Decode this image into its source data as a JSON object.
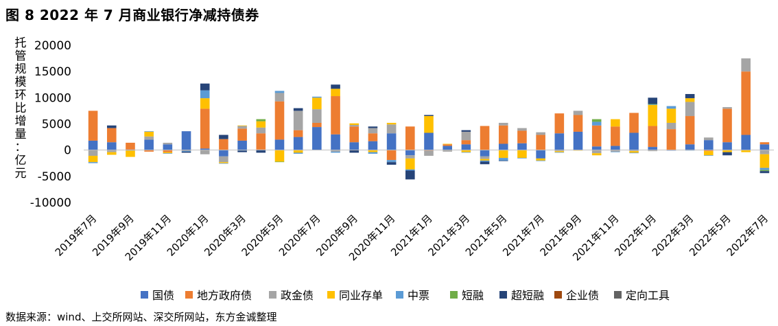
{
  "title": "图 8  2022 年 7 月商业银行净减持债券",
  "source": "数据来源：wind、上交所网站、深交所网站，东方金诚整理",
  "chart_data": {
    "type": "bar",
    "stacked": true,
    "title": "图 8  2022 年 7 月商业银行净减持债券",
    "ylabel": "托管规模环比增量：亿元",
    "ylim": [
      -10000,
      20000
    ],
    "yticks": [
      20000,
      15000,
      10000,
      5000,
      0,
      -5000,
      -10000
    ],
    "ytick_labels": [
      "20000",
      "15000",
      "10000",
      "5000",
      "0",
      "-5000",
      "-10000"
    ],
    "grid": false,
    "legend_position": "bottom",
    "categories": [
      "2019年7月",
      "2019年8月",
      "2019年9月",
      "2019年10月",
      "2019年11月",
      "2019年12月",
      "2020年1月",
      "2020年2月",
      "2020年3月",
      "2020年4月",
      "2020年5月",
      "2020年6月",
      "2020年7月",
      "2020年8月",
      "2020年9月",
      "2020年10月",
      "2020年11月",
      "2020年12月",
      "2021年1月",
      "2021年2月",
      "2021年3月",
      "2021年4月",
      "2021年5月",
      "2021年6月",
      "2021年7月",
      "2021年8月",
      "2021年9月",
      "2021年10月",
      "2021年11月",
      "2021年12月",
      "2022年1月",
      "2022年2月",
      "2022年3月",
      "2022年4月",
      "2022年5月",
      "2022年6月",
      "2022年7月"
    ],
    "xtick_labels": [
      "2019年7月",
      "2019年9月",
      "2019年11月",
      "2020年1月",
      "2020年3月",
      "2020年5月",
      "2020年7月",
      "2020年9月",
      "2020年11月",
      "2021年1月",
      "2021年3月",
      "2021年5月",
      "2021年7月",
      "2021年9月",
      "2021年11月",
      "2022年1月",
      "2022年3月",
      "2022年5月",
      "2022年7月"
    ],
    "series": [
      {
        "name": "国债",
        "color": "#4472C4",
        "values": [
          1800,
          1500,
          100,
          2000,
          1100,
          3600,
          300,
          -1200,
          1800,
          100,
          2000,
          2500,
          4400,
          3000,
          1500,
          1700,
          3200,
          -1000,
          3300,
          800,
          1100,
          -1200,
          1200,
          1300,
          -1600,
          3200,
          3500,
          700,
          800,
          3300,
          600,
          -100,
          1100,
          1900,
          1500,
          2900,
          1100
        ]
      },
      {
        "name": "地方政府债",
        "color": "#ED7D31",
        "values": [
          5700,
          2700,
          1300,
          -300,
          -400,
          -100,
          7600,
          2100,
          2300,
          3100,
          7300,
          1300,
          800,
          7300,
          3000,
          1500,
          -1900,
          4500,
          -100,
          300,
          800,
          4600,
          3500,
          2400,
          2900,
          3800,
          3200,
          4000,
          3700,
          3800,
          4000,
          4000,
          5400,
          -200,
          6400,
          12100,
          400
        ]
      },
      {
        "name": "政金债",
        "color": "#A5A5A5",
        "values": [
          -1100,
          -400,
          -100,
          600,
          300,
          0,
          -800,
          -1100,
          500,
          1100,
          1600,
          3700,
          2600,
          -300,
          300,
          1000,
          1700,
          -600,
          -1000,
          -300,
          1600,
          -500,
          500,
          500,
          500,
          -200,
          800,
          -600,
          -300,
          -200,
          -200,
          1200,
          2700,
          500,
          300,
          2500,
          -800
        ]
      },
      {
        "name": "同业存单",
        "color": "#FFC000",
        "values": [
          -1200,
          -500,
          -1200,
          900,
          -200,
          0,
          2000,
          -200,
          100,
          1200,
          -2200,
          -500,
          2200,
          1400,
          300,
          -400,
          300,
          -2100,
          3200,
          100,
          -400,
          -300,
          -1500,
          -1500,
          -400,
          -200,
          -100,
          -400,
          1400,
          -300,
          4000,
          2700,
          700,
          -800,
          -400,
          -400,
          -2600
        ]
      },
      {
        "name": "中票",
        "color": "#5B9BD5",
        "values": [
          -200,
          0,
          0,
          100,
          -100,
          -200,
          1500,
          -100,
          -100,
          0,
          400,
          -200,
          200,
          -200,
          0,
          -300,
          -400,
          -200,
          0,
          0,
          -100,
          -200,
          -500,
          -100,
          -100,
          -100,
          0,
          700,
          -100,
          -100,
          100,
          500,
          -100,
          -100,
          0,
          0,
          -400
        ]
      },
      {
        "name": "短融",
        "color": "#70AD47",
        "values": [
          0,
          0,
          0,
          0,
          0,
          0,
          0,
          0,
          0,
          400,
          -100,
          0,
          0,
          0,
          0,
          0,
          0,
          0,
          0,
          0,
          0,
          0,
          0,
          0,
          0,
          0,
          0,
          500,
          0,
          0,
          100,
          0,
          0,
          0,
          0,
          0,
          -200
        ]
      },
      {
        "name": "超短融",
        "color": "#264478",
        "values": [
          0,
          500,
          0,
          0,
          0,
          -200,
          1300,
          800,
          -300,
          -500,
          0,
          500,
          0,
          800,
          -500,
          300,
          -500,
          -1700,
          200,
          0,
          300,
          -500,
          -100,
          0,
          0,
          0,
          0,
          0,
          0,
          0,
          1200,
          0,
          800,
          0,
          -600,
          0,
          -400
        ]
      },
      {
        "name": "企业债",
        "color": "#9E480E",
        "values": [
          0,
          0,
          0,
          0,
          0,
          0,
          0,
          0,
          0,
          0,
          0,
          0,
          0,
          0,
          0,
          0,
          0,
          0,
          0,
          0,
          0,
          0,
          0,
          0,
          0,
          0,
          0,
          0,
          0,
          0,
          0,
          0,
          0,
          0,
          0,
          0,
          0
        ]
      },
      {
        "name": "定向工具",
        "color": "#636363",
        "values": [
          0,
          0,
          0,
          0,
          0,
          0,
          0,
          0,
          0,
          0,
          0,
          0,
          0,
          0,
          0,
          0,
          0,
          0,
          0,
          0,
          0,
          0,
          0,
          0,
          0,
          0,
          0,
          0,
          0,
          0,
          0,
          0,
          0,
          0,
          0,
          0,
          0
        ]
      }
    ]
  }
}
